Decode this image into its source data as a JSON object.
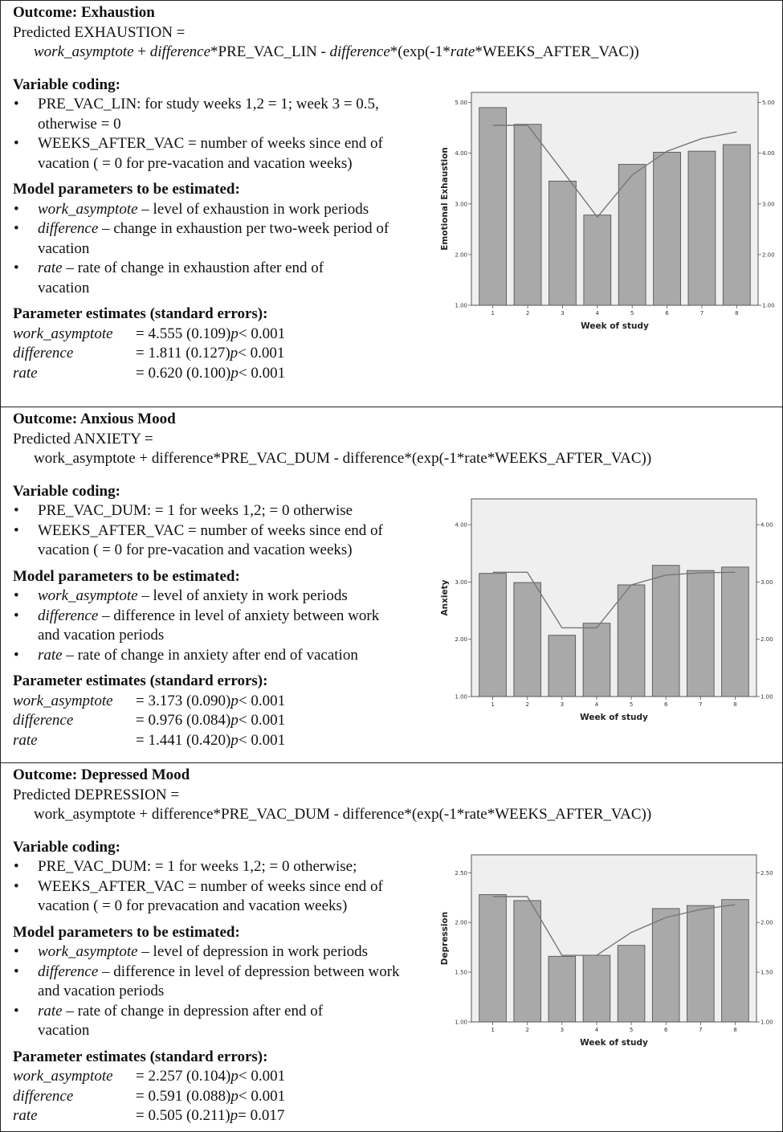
{
  "panels": [
    {
      "heading": "Outcome: Exhaustion",
      "predicted": "Predicted EXHAUSTION =",
      "formula": [
        {
          "t": "work_asymptote",
          "i": true
        },
        {
          "t": " + ",
          "i": false
        },
        {
          "t": "difference",
          "i": true
        },
        {
          "t": "*PRE_VAC_LIN - ",
          "i": false
        },
        {
          "t": "difference",
          "i": true
        },
        {
          "t": "*(exp(-1*",
          "i": false
        },
        {
          "t": "rate",
          "i": true
        },
        {
          "t": "*WEEKS_AFTER_VAC))",
          "i": false
        }
      ],
      "coding_title": "Variable coding:",
      "coding": [
        "PRE_VAC_LIN: for study weeks 1,2 = 1; week 3 = 0.5, otherwise = 0",
        "WEEKS_AFTER_VAC = number of weeks since end of vacation ( = 0 for pre-vacation and vacation weeks)"
      ],
      "params_title": "Model parameters to be estimated:",
      "params": [
        {
          "name": "work_asymptote",
          "desc": " – level of exhaustion in work periods"
        },
        {
          "name": "difference",
          "desc": " – change in exhaustion per two-week period of vacation"
        },
        {
          "name": "rate",
          "desc": " – rate of change in exhaustion after end of vacation"
        }
      ],
      "estimates_title": "Parameter estimates (standard errors):",
      "estimates": [
        {
          "name": "work_asymptote",
          "value": "= 4.555 (0.109) ",
          "p": "p",
          "pval": " < 0.001"
        },
        {
          "name": "difference",
          "value": "= 1.811 (0.127) ",
          "p": "p",
          "pval": " < 0.001"
        },
        {
          "name": "rate",
          "value": "= 0.620 (0.100) ",
          "p": "p",
          "pval": " < 0.001"
        }
      ]
    },
    {
      "heading": "Outcome: Anxious Mood",
      "predicted": "Predicted ANXIETY =",
      "formula": [
        {
          "t": "work_asymptote + difference*PRE_VAC_DUM - difference*(exp(-1*rate*WEEKS_AFTER_VAC))",
          "i": false
        }
      ],
      "coding_title": "Variable coding:",
      "coding": [
        "PRE_VAC_DUM: = 1 for weeks 1,2;  = 0 otherwise",
        "WEEKS_AFTER_VAC = number of weeks since end of vacation ( = 0 for pre-vacation and vacation weeks)"
      ],
      "params_title": "Model parameters to be estimated:",
      "params": [
        {
          "name": "work_asymptote",
          "desc": " – level of anxiety in work periods"
        },
        {
          "name": "difference",
          "desc": " – difference in level of anxiety between work and vacation periods"
        },
        {
          "name": "rate",
          "desc": " – rate of change in anxiety after end of vacation"
        }
      ],
      "estimates_title": "Parameter estimates (standard errors):",
      "estimates": [
        {
          "name": "work_asymptote",
          "value": "= 3.173  (0.090) ",
          "p": "p",
          "pval": " < 0.001"
        },
        {
          "name": "difference",
          "value": "= 0.976 (0.084) ",
          "p": "p",
          "pval": " < 0.001"
        },
        {
          "name": "rate",
          "value": "= 1.441 (0.420) ",
          "p": "p",
          "pval": " < 0.001"
        }
      ]
    },
    {
      "heading": "Outcome: Depressed Mood",
      "predicted": "Predicted DEPRESSION =",
      "formula": [
        {
          "t": "work_asymptote + difference*PRE_VAC_DUM - difference*(exp(-1*rate*WEEKS_AFTER_VAC))",
          "i": false
        }
      ],
      "coding_title": "Variable coding:",
      "coding": [
        "PRE_VAC_DUM: = 1 for weeks 1,2;  = 0 otherwise;",
        "WEEKS_AFTER_VAC = number of weeks since end of vacation ( = 0 for prevacation and vacation weeks)"
      ],
      "params_title": "Model parameters to be estimated:",
      "params": [
        {
          "name": "work_asymptote",
          "desc": " – level of depression in work periods"
        },
        {
          "name": "difference",
          "desc": " – difference in level of depression between work and vacation periods"
        },
        {
          "name": "rate",
          "desc": " – rate of change in depression after end of vacation"
        }
      ],
      "estimates_title": "Parameter estimates (standard errors):",
      "estimates": [
        {
          "name": "work_asymptote",
          "value": "= 2.257 (0.104) ",
          "p": "p",
          "pval": " < 0.001"
        },
        {
          "name": "difference",
          "value": "= 0.591 (0.088) ",
          "p": "p",
          "pval": " < 0.001"
        },
        {
          "name": "rate",
          "value": "= 0.505 (0.211) ",
          "p": "p",
          "pval": " = 0.017"
        }
      ]
    }
  ],
  "chart_data": [
    {
      "type": "bar",
      "xlabel": "Week of study",
      "ylabel": "Emotional Exhaustion",
      "categories": [
        "1",
        "2",
        "3",
        "4",
        "5",
        "6",
        "7",
        "8"
      ],
      "ylim": [
        1.0,
        5.2
      ],
      "yticks": [
        "1.00",
        "2.00",
        "3.00",
        "4.00",
        "5.00"
      ],
      "series": [
        {
          "type": "bar",
          "values": [
            4.9,
            4.57,
            3.45,
            2.78,
            3.78,
            4.02,
            4.04,
            4.17
          ]
        },
        {
          "type": "line",
          "values": [
            4.55,
            4.55,
            3.65,
            2.74,
            3.57,
            4.04,
            4.29,
            4.42
          ]
        }
      ],
      "bar_color": "#a9a9a9",
      "line_color": "#777777",
      "plot_bg": "#efefef"
    },
    {
      "type": "bar",
      "xlabel": "Week of study",
      "ylabel": "Anxiety",
      "categories": [
        "1",
        "2",
        "3",
        "4",
        "5",
        "6",
        "7",
        "8"
      ],
      "ylim": [
        1.0,
        4.45
      ],
      "yticks": [
        "1.00",
        "2.00",
        "3.00",
        "4.00"
      ],
      "series": [
        {
          "type": "bar",
          "values": [
            3.15,
            2.99,
            2.07,
            2.28,
            2.95,
            3.29,
            3.2,
            3.26
          ]
        },
        {
          "type": "line",
          "values": [
            3.17,
            3.17,
            2.2,
            2.2,
            2.95,
            3.12,
            3.16,
            3.17
          ]
        }
      ],
      "bar_color": "#a9a9a9",
      "line_color": "#777777",
      "plot_bg": "#efefef"
    },
    {
      "type": "bar",
      "xlabel": "Week of study",
      "ylabel": "Depression",
      "categories": [
        "1",
        "2",
        "3",
        "4",
        "5",
        "6",
        "7",
        "8"
      ],
      "ylim": [
        1.0,
        2.68
      ],
      "yticks": [
        "1.00",
        "1.50",
        "2.00",
        "2.50"
      ],
      "series": [
        {
          "type": "bar",
          "values": [
            2.28,
            2.22,
            1.66,
            1.67,
            1.77,
            2.14,
            2.17,
            2.23
          ]
        },
        {
          "type": "line",
          "values": [
            2.26,
            2.26,
            1.67,
            1.67,
            1.9,
            2.05,
            2.13,
            2.18
          ]
        }
      ],
      "bar_color": "#a9a9a9",
      "line_color": "#777777",
      "plot_bg": "#efefef"
    }
  ]
}
